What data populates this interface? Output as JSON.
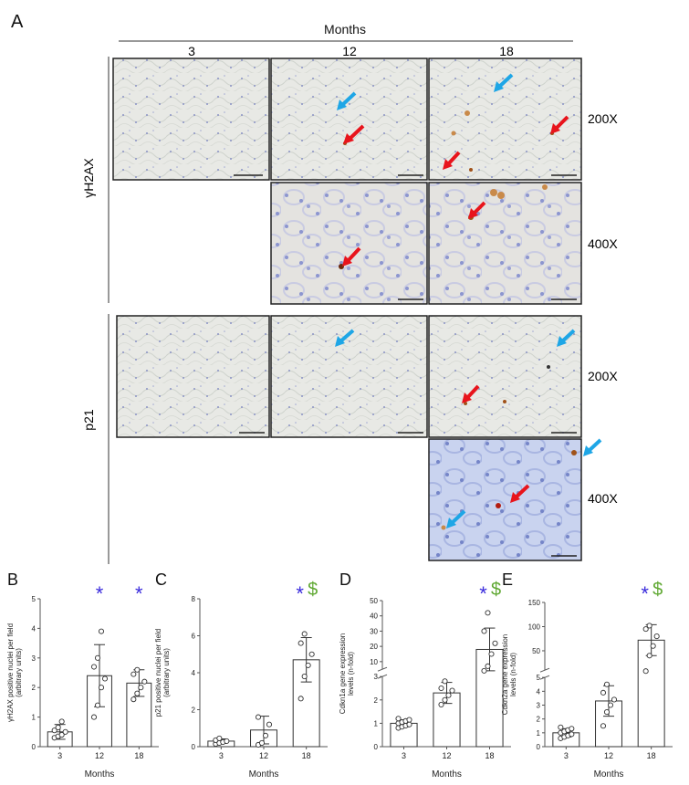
{
  "panel_a": {
    "label": "A",
    "header": "Months",
    "columns": [
      "3",
      "12",
      "18"
    ],
    "rows": [
      "γH2AX",
      "p21"
    ],
    "magnifications": [
      "200X",
      "400X"
    ]
  },
  "colors": {
    "star": "#3a2bdc",
    "dollar": "#5fa832",
    "red_arrow": "#e8141c",
    "blue_arrow": "#1ea6e6",
    "tissue_bg": "#e9eae6",
    "nuclei": "#4d5bb0",
    "brown_stain": "#b8651e",
    "axis": "#555555"
  },
  "chart_data": [
    {
      "panel": "B",
      "type": "bar",
      "categories": [
        "3",
        "12",
        "18"
      ],
      "values": [
        0.5,
        2.4,
        2.15
      ],
      "errors": [
        0.25,
        1.05,
        0.45
      ],
      "points": [
        [
          0.3,
          0.35,
          0.4,
          0.5,
          0.55,
          0.65,
          0.85
        ],
        [
          1.0,
          1.4,
          2.0,
          2.3,
          2.7,
          3.0,
          3.9
        ],
        [
          1.6,
          1.8,
          2.0,
          2.2,
          2.45,
          2.6
        ]
      ],
      "xlabel": "Months",
      "ylabel": [
        "γH2AX positive nuclei per field",
        "(arbitrary units)"
      ],
      "ylim": [
        0,
        5
      ],
      "yticks": [
        "0",
        "1",
        "2",
        "3",
        "4",
        "5"
      ],
      "marks": [
        [],
        [
          "*"
        ],
        [
          "*"
        ]
      ]
    },
    {
      "panel": "C",
      "type": "bar",
      "categories": [
        "3",
        "12",
        "18"
      ],
      "values": [
        0.3,
        0.9,
        4.7
      ],
      "errors": [
        0.12,
        0.75,
        1.2
      ],
      "points": [
        [
          0.15,
          0.2,
          0.25,
          0.3,
          0.35,
          0.45
        ],
        [
          0.1,
          0.2,
          0.6,
          1.2,
          1.6
        ],
        [
          2.6,
          3.8,
          4.4,
          5.0,
          5.6,
          6.1
        ]
      ],
      "xlabel": "Months",
      "ylabel": [
        "p21 positive nuclei per field",
        "(arbitrary units)"
      ],
      "ylim": [
        0,
        8
      ],
      "yticks": [
        "0",
        "2",
        "4",
        "6",
        "8"
      ],
      "marks": [
        [],
        [],
        [
          "*",
          "$"
        ]
      ]
    },
    {
      "panel": "D",
      "type": "bar",
      "categories": [
        "3",
        "12",
        "18"
      ],
      "values": [
        1.0,
        2.3,
        18.0
      ],
      "errors": [
        0.15,
        0.45,
        14.0
      ],
      "points": [
        [
          0.8,
          0.85,
          0.9,
          0.95,
          1.0,
          1.05,
          1.1,
          1.15,
          1.2
        ],
        [
          1.8,
          2.0,
          2.2,
          2.4,
          2.5,
          2.8
        ],
        [
          4.0,
          7.0,
          15.0,
          22.0,
          30.0,
          42.0
        ]
      ],
      "xlabel": "Months",
      "ylabel": [
        "Cdkn1a gene expression",
        "levels (n-fold)"
      ],
      "ylim": [
        0,
        50
      ],
      "axis_break": [
        3,
        5
      ],
      "yticks_lower": [
        "0",
        "1",
        "2",
        "3"
      ],
      "yticks_upper": [
        "10",
        "20",
        "30",
        "40",
        "50"
      ],
      "marks": [
        [],
        [],
        [
          "*",
          "$"
        ]
      ]
    },
    {
      "panel": "E",
      "type": "bar",
      "categories": [
        "3",
        "12",
        "18"
      ],
      "values": [
        1.0,
        3.3,
        72.0
      ],
      "errors": [
        0.3,
        1.1,
        32.0
      ],
      "points": [
        [
          0.6,
          0.7,
          0.8,
          0.9,
          1.0,
          1.1,
          1.2,
          1.3,
          1.4
        ],
        [
          1.5,
          2.5,
          3.0,
          3.4,
          3.9,
          4.5
        ],
        [
          8.0,
          40.0,
          60.0,
          80.0,
          95.0,
          102.0
        ]
      ],
      "xlabel": "Months",
      "ylabel": [
        "Cdkn2a gene expression",
        "levels (n-fold)"
      ],
      "ylim": [
        0,
        150
      ],
      "axis_break": [
        5,
        10
      ],
      "yticks_lower": [
        "0",
        "1",
        "2",
        "3",
        "4",
        "5"
      ],
      "yticks_upper": [
        "50",
        "100",
        "150"
      ],
      "marks": [
        [],
        [],
        [
          "*",
          "$"
        ]
      ]
    }
  ]
}
